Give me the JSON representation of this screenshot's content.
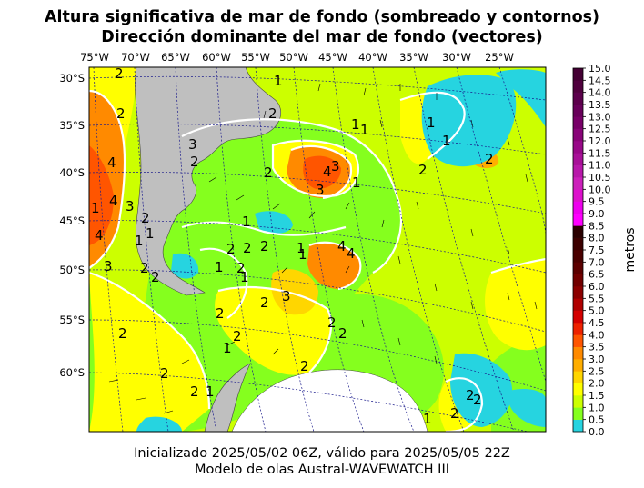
{
  "title_line1": "Altura significativa de mar de fondo (sombreado y contornos)",
  "title_line2": "Dirección dominante del mar de fondo (vectores)",
  "footer_line1": "Inicializado 2025/05/02 06Z, válido para 2025/05/05 22Z",
  "footer_line2": "Modelo de olas Austral-WAVEWATCH III",
  "lon_labels": [
    "75°W",
    "70°W",
    "65°W",
    "60°W",
    "55°W",
    "50°W",
    "45°W",
    "40°W",
    "35°W",
    "30°W",
    "25°W"
  ],
  "lat_labels": [
    "30°S",
    "35°S",
    "40°S",
    "45°S",
    "50°S",
    "55°S",
    "60°S"
  ],
  "colorbar": {
    "unit_label": "metros",
    "ticks": [
      "0.0",
      "0.5",
      "1.0",
      "1.5",
      "2.0",
      "2.5",
      "3.0",
      "3.5",
      "4.0",
      "4.5",
      "5.0",
      "5.5",
      "6.0",
      "6.5",
      "7.0",
      "7.5",
      "8.0",
      "8.5",
      "9.0",
      "9.5",
      "10.0",
      "10.5",
      "11.0",
      "11.5",
      "12.0",
      "12.5",
      "13.0",
      "13.5",
      "14.0",
      "14.5",
      "15.0"
    ],
    "colors": [
      "#26d4e0",
      "#85ff1e",
      "#ccff00",
      "#ffff00",
      "#ffd600",
      "#ffae00",
      "#ff8a00",
      "#ff5500",
      "#ee2200",
      "#d40000",
      "#b00000",
      "#8c0000",
      "#720000",
      "#5c0000",
      "#4a0000",
      "#3c0000",
      "#2a0000",
      "#ff00ff",
      "#ee00ee",
      "#dd10cc",
      "#cc20bb",
      "#b818aa",
      "#a81098",
      "#980888",
      "#880478",
      "#780068",
      "#68005a",
      "#5c004c",
      "#50003e",
      "#440034"
    ]
  },
  "colors": {
    "land": "#bfbfbf",
    "antarctic_ice": "#ffffff",
    "graticule": "#1a1a8c",
    "contour": "#ffffff",
    "vectors": "#000000"
  },
  "contour_labels": [
    "2",
    "2",
    "4",
    "4",
    "1",
    "3",
    "4",
    "1",
    "3",
    "2",
    "2",
    "2",
    "1",
    "2",
    "3",
    "1",
    "2",
    "2",
    "2",
    "1",
    "1",
    "2",
    "2",
    "1",
    "1",
    "2",
    "1",
    "1",
    "1",
    "2",
    "3",
    "2",
    "2",
    "2",
    "2",
    "2",
    "4",
    "3",
    "3",
    "4",
    "4",
    "1",
    "2",
    "2",
    "1",
    "2",
    "2",
    "1",
    "1",
    "2",
    "2",
    "2",
    "1",
    "2",
    "1"
  ]
}
